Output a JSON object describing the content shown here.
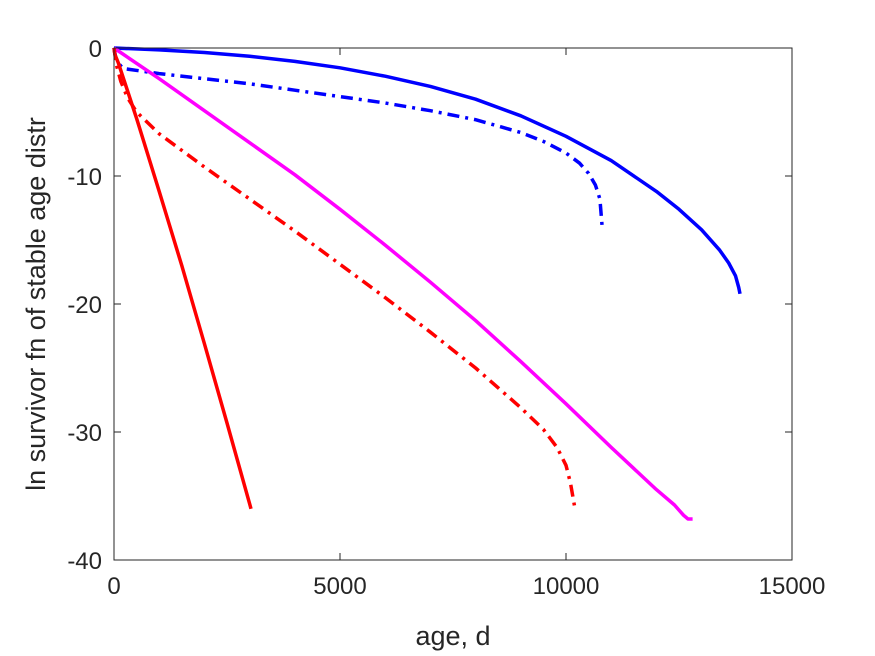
{
  "chart_data": {
    "type": "line",
    "title": "",
    "xlabel": "age, d",
    "ylabel": "ln survivor fn of stable age distr",
    "xlim": [
      0,
      15000
    ],
    "ylim": [
      -40,
      0
    ],
    "xticks": [
      0,
      5000,
      10000,
      15000
    ],
    "yticks": [
      0,
      -10,
      -20,
      -30,
      -40
    ],
    "xtick_labels": [
      "0",
      "5000",
      "10000",
      "15000"
    ],
    "ytick_labels": [
      "0",
      "-10",
      "-20",
      "-30",
      "-40"
    ],
    "grid": false,
    "series": [
      {
        "color": "#0000ff",
        "style": "solid",
        "x": [
          0,
          1000,
          2000,
          3000,
          4000,
          5000,
          6000,
          7000,
          8000,
          9000,
          10000,
          11000,
          12000,
          12500,
          13000,
          13400,
          13600,
          13750,
          13820,
          13850
        ],
        "y": [
          0,
          -0.15,
          -0.35,
          -0.65,
          -1.05,
          -1.55,
          -2.2,
          -3.0,
          -4.0,
          -5.3,
          -6.9,
          -8.8,
          -11.2,
          -12.6,
          -14.2,
          -15.8,
          -16.8,
          -17.8,
          -18.7,
          -19.2
        ]
      },
      {
        "color": "#0000ff",
        "style": "dashdot",
        "x": [
          0,
          50,
          200,
          1000,
          2000,
          3000,
          4000,
          5000,
          6000,
          7000,
          8000,
          9000,
          9500,
          10000,
          10300,
          10500,
          10650,
          10750,
          10800
        ],
        "y": [
          0,
          -1.0,
          -1.6,
          -2.0,
          -2.4,
          -2.8,
          -3.3,
          -3.8,
          -4.3,
          -4.9,
          -5.6,
          -6.6,
          -7.3,
          -8.2,
          -9.0,
          -9.8,
          -10.7,
          -11.8,
          -14.0
        ]
      },
      {
        "color": "#ff00ff",
        "style": "solid",
        "x": [
          0,
          1000,
          2000,
          3000,
          4000,
          5000,
          6000,
          7000,
          8000,
          9000,
          10000,
          11000,
          12000,
          12400,
          12500,
          12600,
          12700,
          12800
        ],
        "y": [
          0,
          -2.4,
          -4.9,
          -7.4,
          -9.9,
          -12.6,
          -15.4,
          -18.3,
          -21.3,
          -24.5,
          -27.8,
          -31.2,
          -34.5,
          -35.7,
          -36.1,
          -36.5,
          -36.8,
          -36.8
        ]
      },
      {
        "color": "#ff0000",
        "style": "dashdot",
        "x": [
          0,
          50,
          150,
          300,
          500,
          1000,
          2000,
          3000,
          4000,
          5000,
          6000,
          7000,
          8000,
          9000,
          9500,
          9800,
          10000,
          10100,
          10200
        ],
        "y": [
          0,
          -1.3,
          -2.6,
          -3.9,
          -5.0,
          -6.7,
          -9.3,
          -11.8,
          -14.3,
          -16.9,
          -19.5,
          -22.2,
          -25.0,
          -28.1,
          -29.8,
          -31.2,
          -32.6,
          -34.0,
          -36.0
        ]
      },
      {
        "color": "#ff0000",
        "style": "solid",
        "x": [
          0,
          20,
          100,
          500,
          1000,
          1500,
          2000,
          2500,
          3000,
          3030
        ],
        "y": [
          0,
          -0.5,
          -1.2,
          -5.5,
          -11.2,
          -17.0,
          -23.1,
          -29.3,
          -35.6,
          -36.0
        ]
      }
    ]
  }
}
